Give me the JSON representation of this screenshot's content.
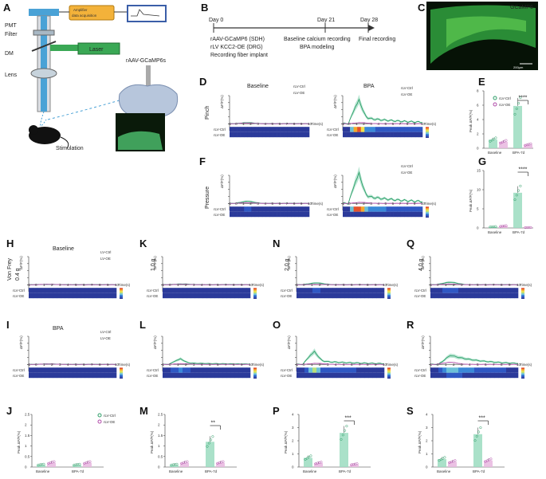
{
  "panels": {
    "A": "A",
    "B": "B",
    "C": "C",
    "D": "D",
    "E": "E",
    "F": "F",
    "G": "G",
    "H": "H",
    "I": "I",
    "J": "J",
    "K": "K",
    "L": "L",
    "M": "M",
    "N": "N",
    "O": "O",
    "P": "P",
    "Q": "Q",
    "R": "R",
    "S": "S"
  },
  "schematic": {
    "pmt": "PMT",
    "amplifier": "Amplifier\ndata acquisition",
    "filter": "Filter",
    "dm": "DM",
    "laser": "Laser",
    "lens": "Lens",
    "virus": "rAAV-GCaMP6s",
    "stimulation": "Stimulation"
  },
  "timeline": {
    "day0": "Day 0",
    "day21": "Day 21",
    "day28": "Day 28",
    "virus1": "rAAV-GCaMP6 (SDH)",
    "virus2": "rLV KCC2-OE (DRG)",
    "implant": "Recording fiber implant",
    "baseline_rec": "Baseline calcium recording",
    "bpa_model": "BPA modeling",
    "final_rec": "Final recording"
  },
  "image_c": {
    "label": "GCaMP6",
    "scale": "200μm"
  },
  "stim_labels": {
    "pinch": "Pinch",
    "pressure": "Pressure",
    "vonfrey": "Von Frey",
    "g04": "0.4 g",
    "g10": "1.0 g",
    "g20": "2.0 g",
    "g40": "4.0 g"
  },
  "conditions": {
    "baseline": "Baseline",
    "bpa": "BPA"
  },
  "legend": {
    "ctrl_a": "rLV-Ctrl",
    "oe_a": "rLV-OE",
    "ctrl_b": "LV-Ctrl",
    "oe_b": "LV-OE",
    "ctrl_c": "rLV-Ctrl",
    "oe_c": "rLV-OE"
  },
  "axis": {
    "dff": "ΔF/F(%)",
    "time": "Time(s)",
    "peak": "Peak ΔF/F(%)",
    "row_ctrl": "rLV-Ctrl",
    "row_oe": "rLV-OE",
    "xticks": [
      "-1",
      "0",
      "1",
      "2",
      "3",
      "4",
      "5",
      "6",
      "7",
      "8",
      "9",
      "10"
    ],
    "bar_cats": [
      "Baseline",
      "BPA-7d"
    ]
  },
  "sig": {
    "E": "****",
    "G": "****",
    "M": "**",
    "P": "***",
    "S": "***"
  },
  "colors": {
    "ctrl": "#2e9e68",
    "ctrl_fill": "#9bdcc0",
    "oe": "#b04aa8",
    "oe_fill": "#e8b7df",
    "laser": "#3aa855",
    "amp": "#f3b23a",
    "optic": "#4aa2d6"
  },
  "chart_data": [
    {
      "panel": "E",
      "type": "bar",
      "categories": [
        "Baseline",
        "BPA-7d"
      ],
      "series": [
        {
          "name": "rLV-Ctrl",
          "values": [
            1.2,
            5.9
          ]
        },
        {
          "name": "rLV-OE",
          "values": [
            0.9,
            0.5
          ]
        }
      ],
      "ylabel": "Peak ΔF/F(%)",
      "ylim": [
        0,
        8
      ],
      "yticks": [
        0,
        2,
        4,
        6,
        8
      ]
    },
    {
      "panel": "G",
      "type": "bar",
      "categories": [
        "Baseline",
        "BPA-7d"
      ],
      "series": [
        {
          "name": "rLV-Ctrl",
          "values": [
            0.3,
            9.2
          ]
        },
        {
          "name": "rLV-OE",
          "values": [
            0.5,
            0.1
          ]
        }
      ],
      "ylabel": "Peak ΔF/F(%)",
      "ylim": [
        0,
        15
      ],
      "yticks": [
        0,
        5,
        10,
        15
      ]
    },
    {
      "panel": "J",
      "type": "bar",
      "categories": [
        "Baseline",
        "BPA-7d"
      ],
      "series": [
        {
          "name": "rLV-Ctrl",
          "values": [
            0.1,
            0.1
          ]
        },
        {
          "name": "rLV-OE",
          "values": [
            0.2,
            0.2
          ]
        }
      ],
      "ylabel": "Peak ΔF/F(%)",
      "ylim": [
        0,
        2.5
      ],
      "yticks": [
        0,
        0.5,
        1,
        1.5,
        2,
        2.5
      ]
    },
    {
      "panel": "M",
      "type": "bar",
      "categories": [
        "Baseline",
        "BPA-7d"
      ],
      "series": [
        {
          "name": "rLV-Ctrl",
          "values": [
            0.1,
            1.2
          ]
        },
        {
          "name": "rLV-OE",
          "values": [
            0.2,
            0.2
          ]
        }
      ],
      "ylabel": "Peak ΔF/F(%)",
      "ylim": [
        0,
        2.5
      ],
      "yticks": [
        0,
        0.5,
        1,
        1.5,
        2,
        2.5
      ]
    },
    {
      "panel": "P",
      "type": "bar",
      "categories": [
        "Baseline",
        "BPA-7d"
      ],
      "series": [
        {
          "name": "rLV-Ctrl",
          "values": [
            0.7,
            2.6
          ]
        },
        {
          "name": "rLV-OE",
          "values": [
            0.3,
            0.2
          ]
        }
      ],
      "ylabel": "Peak ΔF/F(%)",
      "ylim": [
        0,
        4
      ],
      "yticks": [
        0,
        1,
        2,
        3,
        4
      ]
    },
    {
      "panel": "S",
      "type": "bar",
      "categories": [
        "Baseline",
        "BPA-7d"
      ],
      "series": [
        {
          "name": "rLV-Ctrl",
          "values": [
            0.6,
            2.5
          ]
        },
        {
          "name": "rLV-OE",
          "values": [
            0.4,
            0.5
          ]
        }
      ],
      "ylabel": "Peak ΔF/F(%)",
      "ylim": [
        0,
        4
      ],
      "yticks": [
        0,
        1,
        2,
        3,
        4
      ]
    },
    {
      "panel": "D-baseline",
      "type": "line",
      "peak": 0.3,
      "oe_peak": 0.2,
      "ylim": [
        -2,
        8
      ]
    },
    {
      "panel": "D-BPA",
      "type": "line",
      "peak": 5.5,
      "oe_peak": 0.3,
      "ylim": [
        -2,
        8
      ]
    },
    {
      "panel": "F-baseline",
      "type": "line",
      "peak": 0.6,
      "oe_peak": 0.2,
      "ylim": [
        -2,
        8
      ]
    },
    {
      "panel": "F-BPA",
      "type": "line",
      "peak": 7.0,
      "oe_peak": 0.3,
      "ylim": [
        -2,
        8
      ]
    },
    {
      "panel": "H",
      "type": "line",
      "peak": 0.1,
      "oe_peak": 0.1,
      "ylim": [
        -2,
        8
      ]
    },
    {
      "panel": "I",
      "type": "line",
      "peak": 0.15,
      "oe_peak": 0.1,
      "ylim": [
        -2,
        8
      ]
    },
    {
      "panel": "K",
      "type": "line",
      "peak": 0.2,
      "oe_peak": 0.1,
      "ylim": [
        -2,
        8
      ]
    },
    {
      "panel": "L",
      "type": "line",
      "peak": 1.3,
      "oe_peak": 0.2,
      "ylim": [
        -2,
        8
      ]
    },
    {
      "panel": "N",
      "type": "line",
      "peak": 0.5,
      "oe_peak": 0.1,
      "ylim": [
        -2,
        8
      ]
    },
    {
      "panel": "O",
      "type": "line",
      "peak": 3.0,
      "oe_peak": 0.3,
      "ylim": [
        -2,
        8
      ]
    },
    {
      "panel": "Q",
      "type": "line",
      "peak": 0.7,
      "oe_peak": 0.2,
      "ylim": [
        -2,
        8
      ]
    },
    {
      "panel": "R",
      "type": "line",
      "peak": 2.6,
      "oe_peak": 0.6,
      "ylim": [
        -2,
        8
      ]
    }
  ]
}
